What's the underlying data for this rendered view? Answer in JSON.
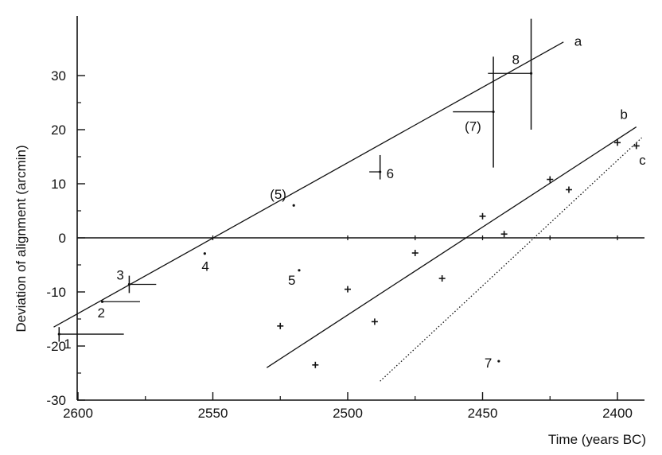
{
  "chart_data": {
    "type": "scatter",
    "xlabel": "Time (years BC)",
    "ylabel": "Deviation of alignment (arcmin)",
    "xlim": [
      2610,
      2390
    ],
    "ylim": [
      -30,
      36
    ],
    "x_reversed": true,
    "x_ticks": [
      2600,
      2550,
      2500,
      2450,
      2400
    ],
    "y_ticks": [
      30,
      20,
      10,
      0,
      -10,
      -20,
      -30
    ],
    "x_tick_labels": [
      "2600",
      "2550",
      "2500",
      "2450",
      "2400"
    ],
    "y_tick_labels": [
      "30",
      "20",
      "10",
      "0",
      "-10",
      "-20",
      "-30"
    ],
    "zero_line": {
      "y": 0,
      "x_ticks": [
        2550,
        2500,
        2475,
        2450,
        2425,
        2400
      ]
    },
    "lines": [
      {
        "label": "a",
        "style": "solid",
        "x": [
          2609,
          2420
        ],
        "y": [
          -16.5,
          36.2
        ]
      },
      {
        "label": "b",
        "style": "solid",
        "x": [
          2530,
          2393
        ],
        "y": [
          -24.0,
          20.5
        ]
      },
      {
        "label": "c",
        "style": "dotted",
        "x": [
          2488,
          2391
        ],
        "y": [
          -26.5,
          18.5
        ]
      }
    ],
    "line_b_points": [
      {
        "x": 2525,
        "y": -16.3
      },
      {
        "x": 2500,
        "y": -9.5
      },
      {
        "x": 2475,
        "y": -2.8
      },
      {
        "x": 2450,
        "y": 4.0
      },
      {
        "x": 2425,
        "y": 10.8
      },
      {
        "x": 2400,
        "y": 17.6
      }
    ],
    "line_c_points": [
      {
        "x": 2512,
        "y": -23.5
      },
      {
        "x": 2490,
        "y": -15.5
      },
      {
        "x": 2465,
        "y": -7.5
      },
      {
        "x": 2442,
        "y": 0.7
      },
      {
        "x": 2418,
        "y": 8.9
      },
      {
        "x": 2393,
        "y": 17.0
      }
    ],
    "points": [
      {
        "label": "1",
        "x": 2607,
        "y": -17.8,
        "vbar": [
          -16.5,
          -19.2
        ],
        "hbar_to": 2583
      },
      {
        "label": "2",
        "x": 2591,
        "y": -11.8,
        "hbar_to": 2577
      },
      {
        "label": "3",
        "x": 2581,
        "y": -8.6,
        "vbar": [
          -7.0,
          -10.2
        ],
        "hbar_to": 2571
      },
      {
        "label": "4",
        "x": 2553,
        "y": -2.9
      },
      {
        "label": "(5)",
        "x": 2520,
        "y": 6.0
      },
      {
        "label": "5",
        "x": 2518,
        "y": -6.0
      },
      {
        "label": "6",
        "x": 2488,
        "y": 12.2,
        "vbar": [
          15.3,
          10.8
        ],
        "hbar_to": 2492
      },
      {
        "label": "(7)",
        "x": 2446,
        "y": 23.3,
        "vbar": [
          33.5,
          13.0
        ],
        "hbar_to": 2461
      },
      {
        "label": "7",
        "x": 2444,
        "y": -22.8
      },
      {
        "label": "8",
        "x": 2432,
        "y": 30.4,
        "vbar": [
          40.5,
          20.0
        ],
        "hbar_to": 2448
      }
    ]
  }
}
